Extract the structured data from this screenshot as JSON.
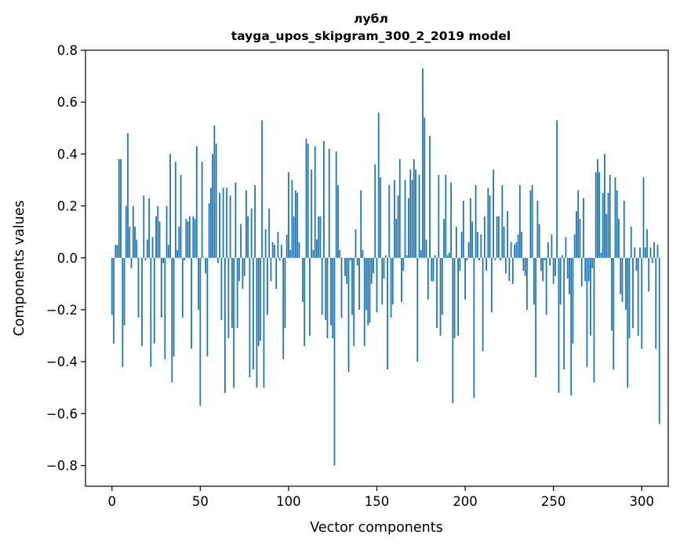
{
  "chart_data": {
    "type": "bar",
    "title_lines": [
      "лубл",
      "tayga_upos_skipgram_300_2_2019 model"
    ],
    "xlabel": "Vector components",
    "ylabel": "Components values",
    "xlim": [
      -15,
      315
    ],
    "ylim": [
      -0.88,
      0.8
    ],
    "x_ticks": [
      0,
      50,
      100,
      150,
      200,
      250,
      300
    ],
    "x_tick_labels": [
      "0",
      "50",
      "100",
      "150",
      "200",
      "250",
      "300"
    ],
    "y_ticks": [
      0.8,
      0.6,
      0.4,
      0.2,
      0.0,
      -0.2,
      -0.4,
      -0.6,
      -0.8
    ],
    "y_tick_labels": [
      "0.8",
      "0.6",
      "0.4",
      "0.2",
      "0.0",
      "−0.2",
      "−0.4",
      "−0.6",
      "−0.8"
    ],
    "bar_color": "#1f77b4",
    "values": [
      -0.22,
      -0.33,
      0.05,
      0.05,
      0.38,
      0.38,
      -0.42,
      -0.26,
      0.2,
      0.48,
      0.12,
      -0.04,
      0.2,
      0.12,
      0.07,
      -0.23,
      0.0,
      -0.34,
      0.24,
      -0.01,
      0.07,
      0.23,
      -0.42,
      0.08,
      -0.33,
      0.16,
      0.2,
      0.14,
      -0.23,
      -0.02,
      -0.39,
      0.2,
      0.05,
      0.4,
      -0.48,
      -0.38,
      0.37,
      0.03,
      0.12,
      0.32,
      -0.23,
      -0.01,
      0.15,
      0.14,
      0.16,
      -0.35,
      0.16,
      0.15,
      0.43,
      -0.2,
      -0.57,
      0.37,
      0.0,
      -0.06,
      -0.38,
      0.21,
      0.27,
      0.4,
      0.51,
      0.44,
      -0.02,
      0.25,
      -0.24,
      0.27,
      -0.52,
      0.27,
      -0.31,
      0.24,
      -0.27,
      -0.5,
      0.29,
      -0.27,
      -0.09,
      0.13,
      -0.12,
      -0.07,
      0.26,
      0.16,
      -0.46,
      0.19,
      -0.43,
      0.28,
      -0.5,
      -0.34,
      -0.32,
      0.53,
      -0.5,
      0.11,
      -0.22,
      0.19,
      -0.09,
      0.06,
      0.05,
      -0.12,
      0.1,
      -0.01,
      0.05,
      -0.39,
      -0.27,
      0.09,
      0.33,
      0.03,
      0.3,
      0.16,
      0.26,
      0.25,
      0.06,
      0.0,
      -0.17,
      -0.34,
      0.46,
      0.44,
      -0.3,
      0.34,
      0.03,
      0.43,
      0.07,
      0.16,
      0.16,
      -0.22,
      0.45,
      -0.24,
      -0.31,
      0.42,
      -0.26,
      -0.31,
      -0.8,
      0.41,
      0.28,
      0.03,
      -0.23,
      0.0,
      -0.07,
      -0.1,
      -0.44,
      -0.01,
      -0.22,
      -0.34,
      0.11,
      -0.03,
      -0.2,
      0.26,
      0.03,
      -0.34,
      -0.2,
      -0.26,
      -0.25,
      -0.1,
      -0.06,
      0.36,
      -0.21,
      0.56,
      0.31,
      -0.18,
      -0.08,
      0.01,
      -0.43,
      0.28,
      -0.23,
      -0.18,
      0.3,
      0.15,
      0.24,
      0.38,
      -0.17,
      -0.05,
      0.3,
      0.01,
      0.23,
      0.34,
      0.3,
      0.38,
      0.34,
      -0.4,
      0.32,
      0.03,
      0.73,
      0.54,
      0.07,
      -0.16,
      0.47,
      -0.09,
      -0.09,
      0.01,
      -0.27,
      0.32,
      -0.3,
      -0.22,
      0.15,
      0.32,
      0.01,
      0.02,
      0.29,
      -0.56,
      -0.31,
      0.12,
      -0.3,
      -0.05,
      0.1,
      0.22,
      -0.16,
      -0.01,
      0.06,
      0.23,
      0.14,
      -0.54,
      0.28,
      0.1,
      -0.01,
      0.09,
      -0.36,
      0.16,
      -0.05,
      0.27,
      0.24,
      -0.21,
      0.34,
      -0.01,
      0.16,
      0.16,
      -0.01,
      0.28,
      0.12,
      -0.06,
      0.18,
      -0.09,
      0.06,
      -0.1,
      0.05,
      0.06,
      0.09,
      0.28,
      0.1,
      -0.05,
      -0.07,
      -0.2,
      0.0,
      0.26,
      0.28,
      -0.18,
      -0.46,
      0.22,
      0.13,
      -0.05,
      -0.09,
      -0.01,
      -0.22,
      0.06,
      -0.03,
      0.09,
      -0.1,
      -0.07,
      0.53,
      -0.52,
      -0.18,
      0.01,
      -0.43,
      0.08,
      -0.08,
      -0.14,
      -0.53,
      -0.33,
      0.09,
      0.18,
      0.26,
      0.15,
      -0.11,
      0.23,
      -0.09,
      -0.42,
      -0.09,
      -0.3,
      -0.04,
      -0.48,
      0.33,
      0.38,
      0.33,
      0.02,
      0.25,
      0.4,
      0.17,
      0.25,
      0.32,
      -0.28,
      -0.43,
      0.31,
      0.26,
      0.15,
      -0.14,
      -0.17,
      0.22,
      -0.2,
      -0.5,
      -0.31,
      0.12,
      -0.27,
      0.04,
      -0.05,
      -0.3,
      0.04,
      -0.35,
      0.31,
      0.04,
      0.11,
      -0.13,
      0.04,
      -0.02,
      0.06,
      -0.35,
      0.05,
      -0.64
    ]
  }
}
